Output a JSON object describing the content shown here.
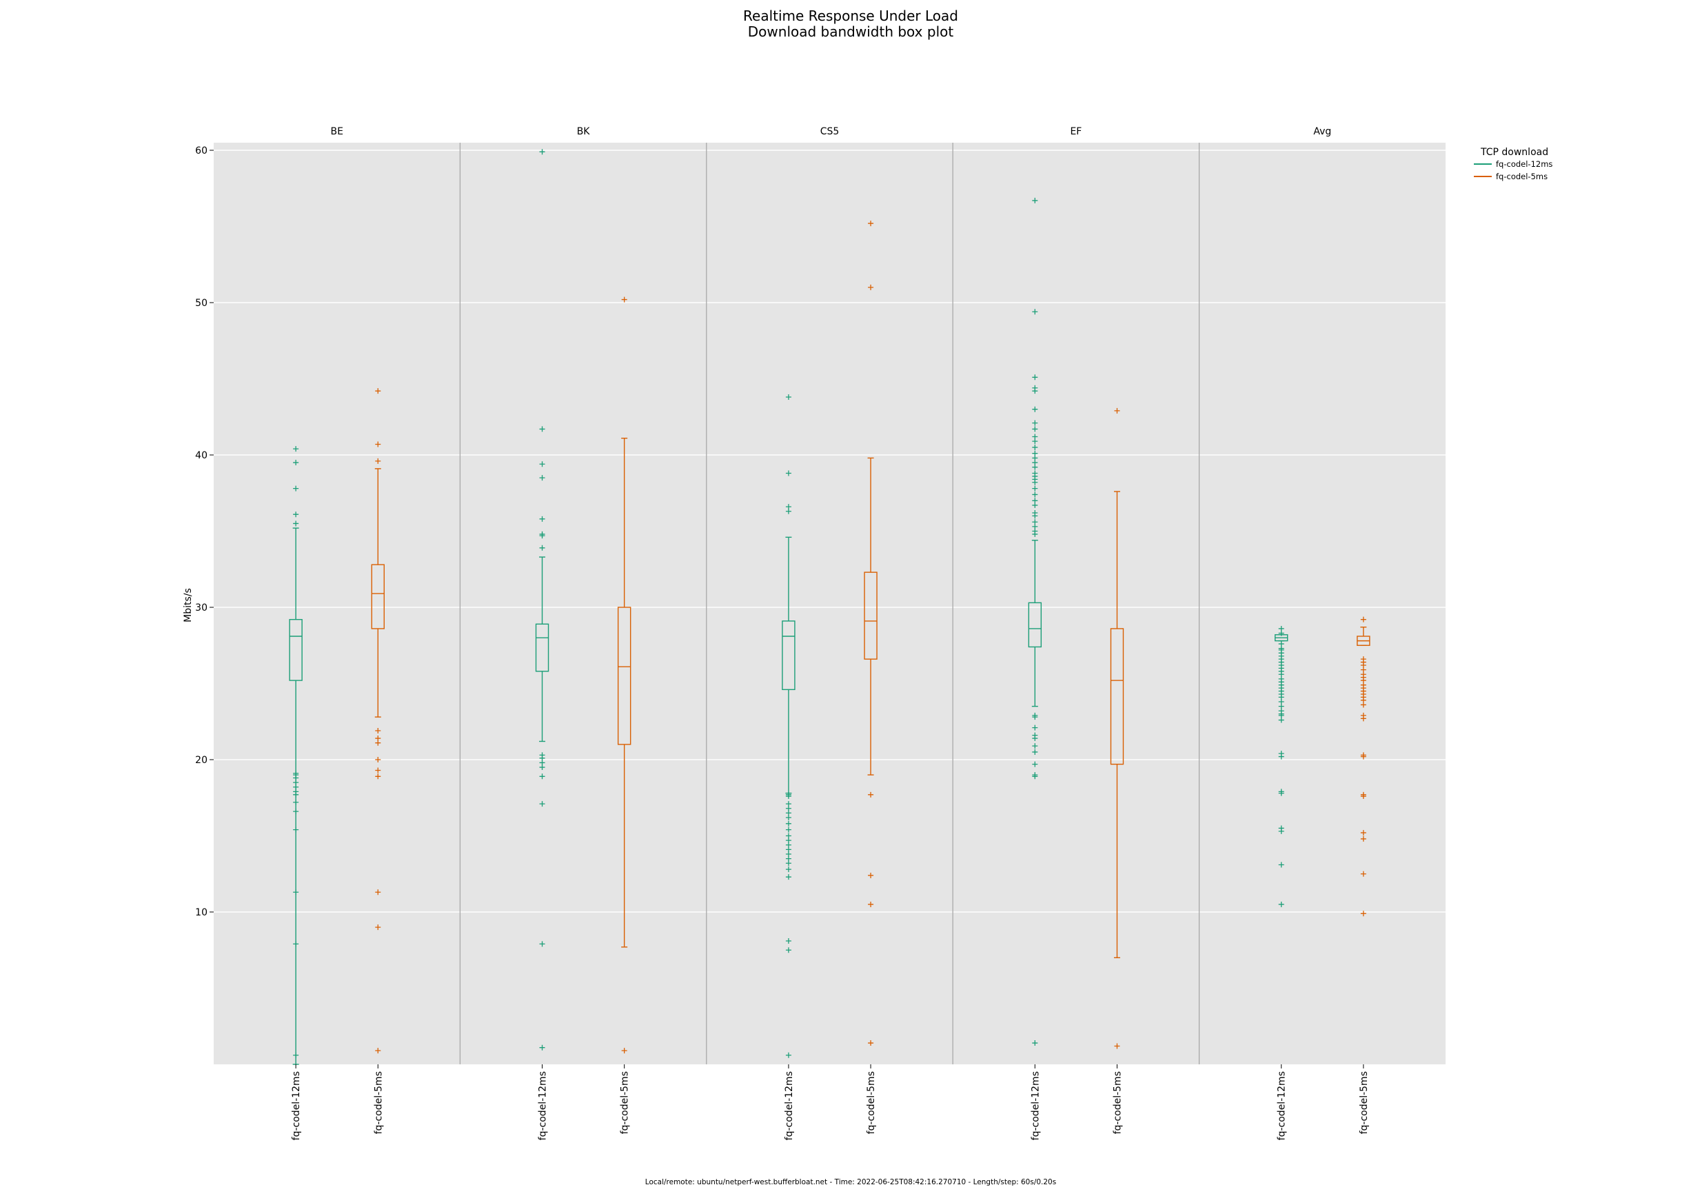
{
  "chart_data": {
    "type": "box",
    "title": "Realtime Response Under Load",
    "subtitle": "Download bandwidth box plot",
    "ylabel": "Mbits/s",
    "ylim": [
      0,
      60
    ],
    "yticks": [
      10,
      20,
      30,
      40,
      50,
      60
    ],
    "grid": true,
    "legend": {
      "title": "TCP download",
      "placement": "top-right, outside plot",
      "entries": [
        {
          "label": "fq-codel-12ms",
          "color": "#1b9e77"
        },
        {
          "label": "fq-codel-5ms",
          "color": "#d95f02"
        }
      ]
    },
    "panels": [
      {
        "name": "BE",
        "boxes": [
          {
            "label": "fq-codel-12ms",
            "color": "#1b9e77",
            "whisker_low": 0,
            "q1": 25.2,
            "median": 28.1,
            "q3": 29.2,
            "whisker_high": 35.2,
            "outliers": [
              40.4,
              39.5,
              37.8,
              36.1,
              35.5,
              19.1,
              19.0,
              18.8,
              18.5,
              18.2,
              17.9,
              17.7,
              17.2,
              16.6,
              15.4,
              11.3,
              7.9,
              0.6
            ]
          },
          {
            "label": "fq-codel-5ms",
            "color": "#d95f02",
            "whisker_low": 22.8,
            "q1": 28.6,
            "median": 30.9,
            "q3": 32.8,
            "whisker_high": 39.1,
            "outliers": [
              44.2,
              40.7,
              39.6,
              21.9,
              21.4,
              21.1,
              20.0,
              19.3,
              18.9,
              11.3,
              9.0,
              0.9
            ]
          }
        ]
      },
      {
        "name": "BK",
        "boxes": [
          {
            "label": "fq-codel-12ms",
            "color": "#1b9e77",
            "whisker_low": 21.2,
            "q1": 25.8,
            "median": 28.0,
            "q3": 28.9,
            "whisker_high": 33.3,
            "outliers": [
              59.9,
              41.7,
              39.4,
              38.5,
              35.8,
              34.8,
              34.7,
              33.9,
              20.3,
              20.1,
              19.8,
              19.5,
              18.9,
              17.1,
              7.9,
              1.1
            ]
          },
          {
            "label": "fq-codel-5ms",
            "color": "#d95f02",
            "whisker_low": 7.7,
            "q1": 21.0,
            "median": 26.1,
            "q3": 30.0,
            "whisker_high": 41.1,
            "outliers": [
              50.2,
              0.9
            ]
          }
        ]
      },
      {
        "name": "CS5",
        "boxes": [
          {
            "label": "fq-codel-12ms",
            "color": "#1b9e77",
            "whisker_low": 17.8,
            "q1": 24.6,
            "median": 28.1,
            "q3": 29.1,
            "whisker_high": 34.6,
            "outliers": [
              43.8,
              38.8,
              36.6,
              36.3,
              17.7,
              17.6,
              17.1,
              16.8,
              16.5,
              16.2,
              15.8,
              15.4,
              15.0,
              14.7,
              14.4,
              14.1,
              13.8,
              13.5,
              13.2,
              12.8,
              12.3,
              8.1,
              7.5,
              0.6
            ]
          },
          {
            "label": "fq-codel-5ms",
            "color": "#d95f02",
            "whisker_low": 19.0,
            "q1": 26.6,
            "median": 29.1,
            "q3": 32.3,
            "whisker_high": 39.8,
            "outliers": [
              55.2,
              51.0,
              17.7,
              12.4,
              10.5,
              1.4
            ]
          }
        ]
      },
      {
        "name": "EF",
        "boxes": [
          {
            "label": "fq-codel-12ms",
            "color": "#1b9e77",
            "whisker_low": 23.5,
            "q1": 27.4,
            "median": 28.6,
            "q3": 30.3,
            "whisker_high": 34.4,
            "outliers": [
              56.7,
              49.4,
              45.1,
              44.4,
              44.2,
              43.0,
              42.1,
              41.7,
              41.2,
              40.9,
              40.5,
              40.1,
              39.8,
              39.5,
              39.2,
              38.8,
              38.6,
              38.4,
              38.2,
              37.8,
              37.4,
              37.0,
              36.7,
              36.2,
              36.0,
              35.6,
              35.3,
              35.0,
              34.8,
              22.9,
              22.8,
              22.1,
              21.6,
              21.4,
              20.9,
              20.5,
              19.7,
              19.0,
              18.9,
              1.4
            ]
          },
          {
            "label": "fq-codel-5ms",
            "color": "#d95f02",
            "whisker_low": 7.0,
            "q1": 19.7,
            "median": 25.2,
            "q3": 28.6,
            "whisker_high": 37.6,
            "outliers": [
              42.9,
              1.2
            ]
          }
        ]
      },
      {
        "name": "Avg",
        "boxes": [
          {
            "label": "fq-codel-12ms",
            "color": "#1b9e77",
            "whisker_low": 27.8,
            "q1": 27.8,
            "median": 28.0,
            "q3": 28.2,
            "whisker_high": 28.2,
            "outliers": [
              28.6,
              28.3,
              27.6,
              27.3,
              27.2,
              27.0,
              26.8,
              26.6,
              26.4,
              26.2,
              26.0,
              25.8,
              25.6,
              25.3,
              25.1,
              24.9,
              24.7,
              24.5,
              24.3,
              24.1,
              23.8,
              23.5,
              23.2,
              23.0,
              22.9,
              22.6,
              20.4,
              20.2,
              17.9,
              17.8,
              15.5,
              15.3,
              13.1,
              10.5
            ]
          },
          {
            "label": "fq-codel-5ms",
            "color": "#d95f02",
            "whisker_low": 27.5,
            "q1": 27.5,
            "median": 27.8,
            "q3": 28.1,
            "whisker_high": 28.7,
            "outliers": [
              29.2,
              26.6,
              26.4,
              26.2,
              25.9,
              25.6,
              25.4,
              25.2,
              24.9,
              24.7,
              24.5,
              24.3,
              24.1,
              23.9,
              23.6,
              22.9,
              22.7,
              20.3,
              20.2,
              17.7,
              17.6,
              15.2,
              14.8,
              12.5,
              9.9
            ]
          }
        ]
      }
    ],
    "footer": "Local/remote: ubuntu/netperf-west.bufferbloat.net - Time: 2022-06-25T08:42:16.270710 - Length/step: 60s/0.20s"
  }
}
